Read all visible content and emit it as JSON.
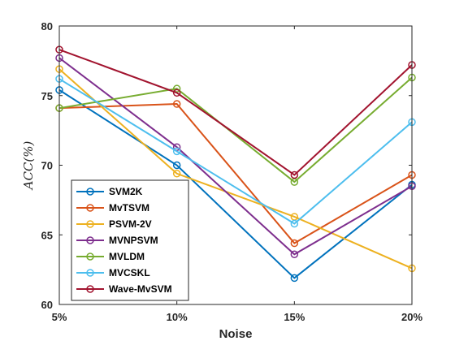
{
  "chart_data": {
    "type": "line",
    "title": "",
    "xlabel": "Noise",
    "ylabel": "ACC(%)",
    "categories": [
      "5%",
      "10%",
      "15%",
      "20%"
    ],
    "ylim": [
      60,
      80
    ],
    "yticks": [
      60,
      65,
      70,
      75,
      80
    ],
    "grid": false,
    "legend_position": "bottom-left",
    "series": [
      {
        "name": "SVM2K",
        "color": "#0072BD",
        "values": [
          75.4,
          70.0,
          61.9,
          68.6
        ]
      },
      {
        "name": "MvTSVM",
        "color": "#D95319",
        "values": [
          74.1,
          74.4,
          64.4,
          69.3
        ]
      },
      {
        "name": "PSVM-2V",
        "color": "#EDB120",
        "values": [
          76.9,
          69.4,
          66.3,
          62.6
        ]
      },
      {
        "name": "MVNPSVM",
        "color": "#7E2F8E",
        "values": [
          77.7,
          71.3,
          63.6,
          68.5
        ]
      },
      {
        "name": "MVLDM",
        "color": "#77AC30",
        "values": [
          74.1,
          75.5,
          68.8,
          76.3
        ]
      },
      {
        "name": "MVCSKL",
        "color": "#4DBEEE",
        "values": [
          76.2,
          71.0,
          65.8,
          73.1
        ]
      },
      {
        "name": "Wave-MvSVM",
        "color": "#A2142F",
        "values": [
          78.3,
          75.2,
          69.3,
          77.2
        ]
      }
    ]
  }
}
